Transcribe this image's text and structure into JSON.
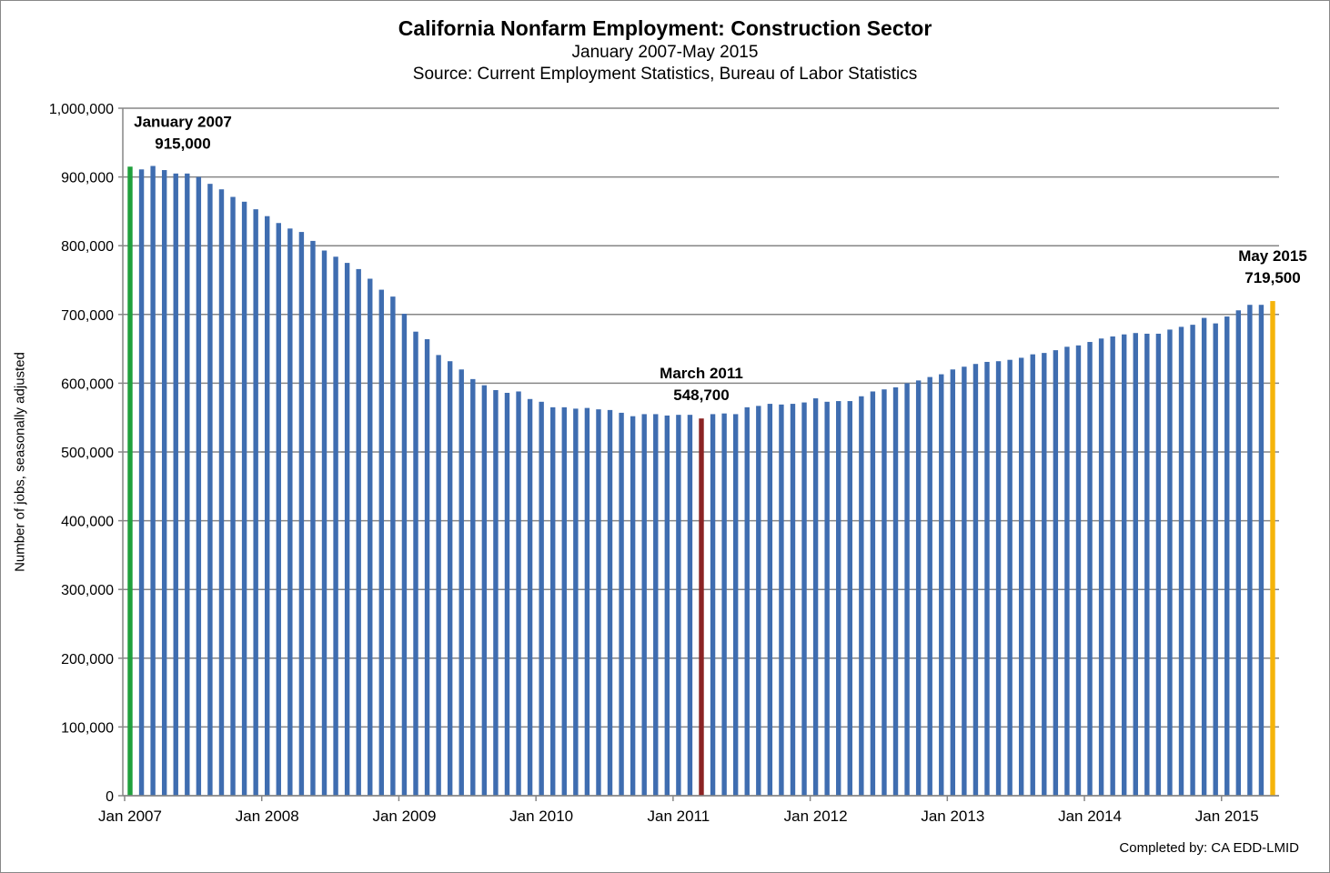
{
  "chart_data": {
    "type": "bar",
    "title": "California Nonfarm Employment: Construction Sector",
    "subtitle": "January 2007-May 2015",
    "source": "Source: Current Employment Statistics, Bureau of Labor Statistics",
    "ylabel": "Number of jobs, seasonally adjusted",
    "xlabel": "",
    "ylim": [
      0,
      1000000
    ],
    "yticks": [
      "0",
      "100,000",
      "200,000",
      "300,000",
      "400,000",
      "500,000",
      "600,000",
      "700,000",
      "800,000",
      "900,000",
      "1,000,000"
    ],
    "xticks": [
      "Jan 2007",
      "Jan 2008",
      "Jan 2009",
      "Jan 2010",
      "Jan 2011",
      "Jan 2012",
      "Jan 2013",
      "Jan 2014",
      "Jan 2015"
    ],
    "grid": true,
    "start": "Jan 2007",
    "values": [
      915000,
      911000,
      916000,
      910000,
      905000,
      905000,
      900000,
      890000,
      882000,
      871000,
      864000,
      853000,
      843000,
      833000,
      825000,
      820000,
      807000,
      793000,
      784000,
      775000,
      766000,
      752000,
      736000,
      726000,
      701000,
      675000,
      664000,
      641000,
      632000,
      620000,
      606000,
      597000,
      590000,
      586000,
      588000,
      577000,
      573000,
      565000,
      565000,
      563000,
      564000,
      562000,
      561000,
      557000,
      552000,
      555000,
      555000,
      553000,
      554000,
      554000,
      548700,
      555000,
      556000,
      555000,
      565000,
      567000,
      570000,
      569000,
      570000,
      572000,
      578000,
      573000,
      574000,
      574000,
      581000,
      588000,
      591000,
      594000,
      600000,
      604000,
      609000,
      613000,
      620000,
      624000,
      628000,
      631000,
      632000,
      634000,
      637000,
      642000,
      644000,
      648000,
      653000,
      655000,
      660000,
      665000,
      668000,
      671000,
      673000,
      672000,
      672000,
      678000,
      682000,
      685000,
      695000,
      687000,
      697000,
      706000,
      714000,
      714000,
      719500
    ],
    "highlights": [
      {
        "index": 0,
        "color": "#1fa03c",
        "label": "January 2007",
        "value_label": "915,000"
      },
      {
        "index": 50,
        "color": "#8b2323",
        "label": "March 2011",
        "value_label": "548,700"
      },
      {
        "index": 100,
        "color": "#f5b40a",
        "label": "May 2015",
        "value_label": "719,500"
      }
    ],
    "bar_color": "#3f6db0"
  },
  "credit": "Completed by: CA EDD-LMID"
}
